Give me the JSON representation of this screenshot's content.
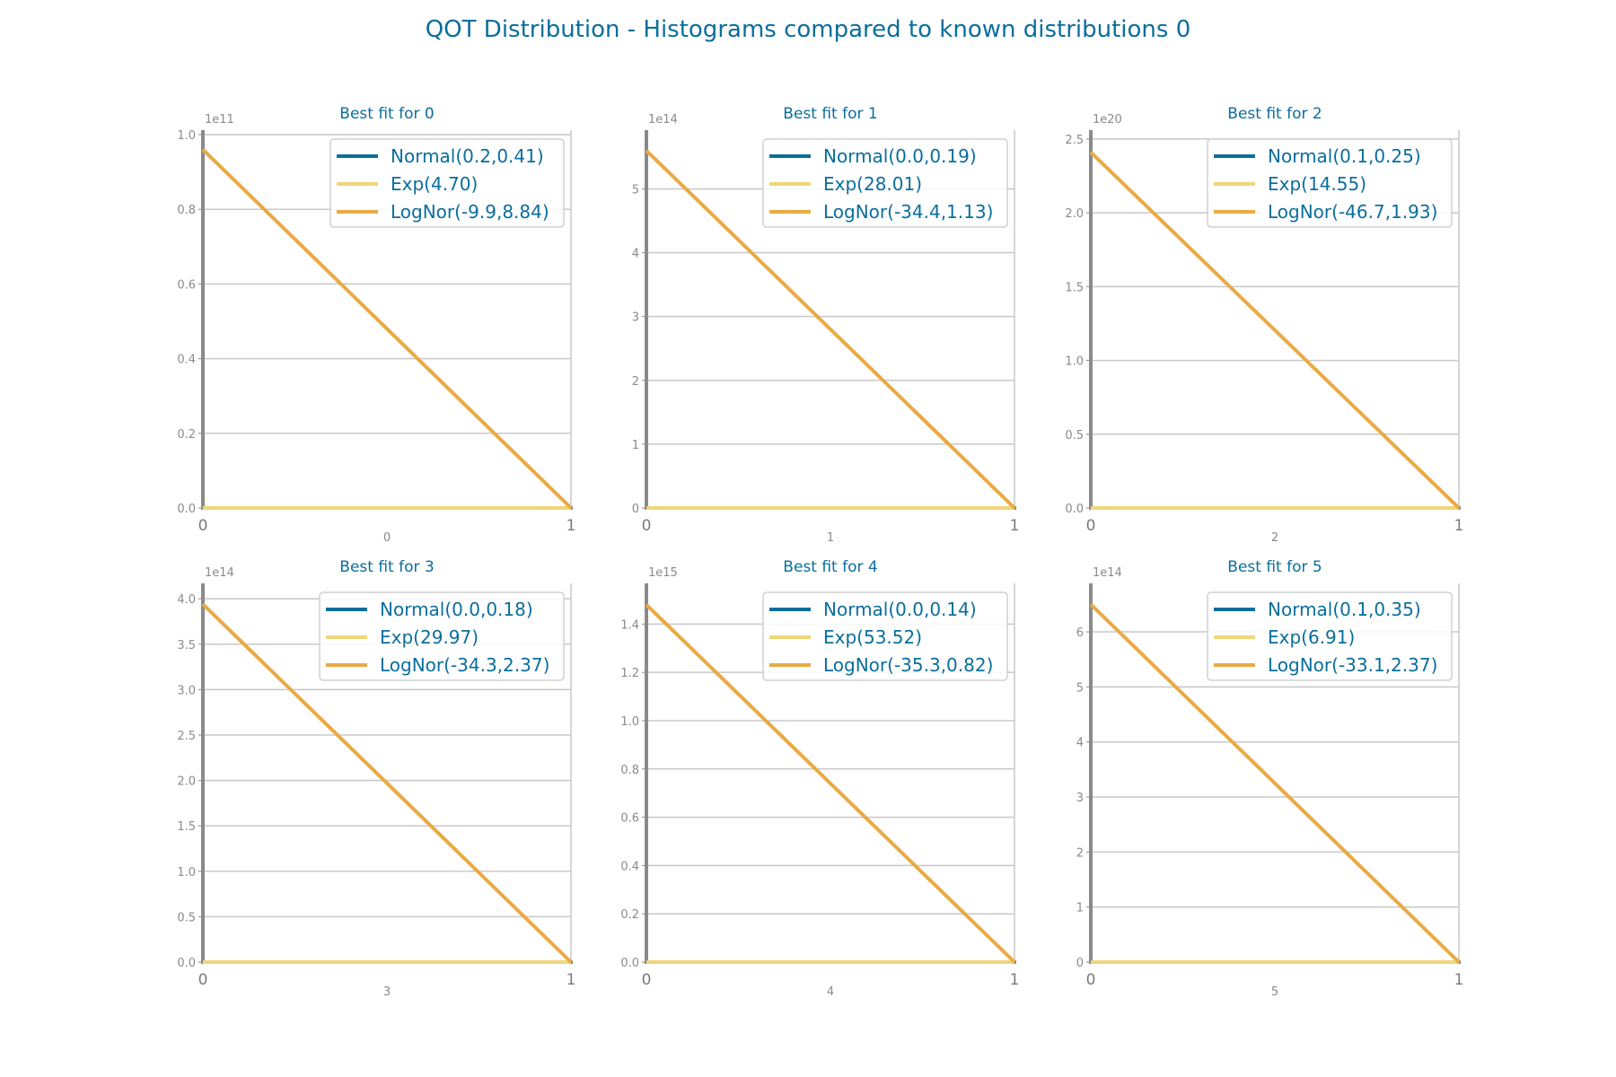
{
  "title": "QOT Distribution - Histograms compared to known distributions 0",
  "colors": {
    "title": "#0a6e9c",
    "normal": "#0a6e9c",
    "exp": "#f0d67a",
    "lognor": "#e9aa45",
    "grid": "#c8c8c8",
    "axis": "#8a8a8a"
  },
  "chart_data": [
    {
      "type": "line",
      "title": "Best fit for 0",
      "xlabel": "0",
      "exponent_label": "1e11",
      "xlim": [
        0,
        1
      ],
      "xticks": [
        "0",
        "1"
      ],
      "ylim": [
        0,
        1.0
      ],
      "yticks": [
        0.0,
        0.2,
        0.4,
        0.6,
        0.8,
        1.0
      ],
      "ytick_labels": [
        "0.0",
        "0.2",
        "0.4",
        "0.6",
        "0.8",
        "1.0"
      ],
      "grid": true,
      "legend_position": "top-right",
      "series": [
        {
          "name": "Normal(0.2,0.41)",
          "x": [
            0,
            1
          ],
          "y": [
            0,
            0
          ]
        },
        {
          "name": "Exp(4.70)",
          "x": [
            0,
            1
          ],
          "y": [
            0,
            0
          ]
        },
        {
          "name": "LogNor(-9.9,8.84)",
          "x": [
            0,
            1
          ],
          "y": [
            0.96,
            0
          ]
        }
      ]
    },
    {
      "type": "line",
      "title": "Best fit for 1",
      "xlabel": "1",
      "exponent_label": "1e14",
      "xlim": [
        0,
        1
      ],
      "xticks": [
        "0",
        "1"
      ],
      "ylim": [
        0,
        5.85
      ],
      "yticks": [
        0,
        1,
        2,
        3,
        4,
        5
      ],
      "ytick_labels": [
        "0",
        "1",
        "2",
        "3",
        "4",
        "5"
      ],
      "grid": true,
      "legend_position": "top-right",
      "series": [
        {
          "name": "Normal(0.0,0.19)",
          "x": [
            0,
            1
          ],
          "y": [
            0,
            0
          ]
        },
        {
          "name": "Exp(28.01)",
          "x": [
            0,
            1
          ],
          "y": [
            0,
            0
          ]
        },
        {
          "name": "LogNor(-34.4,1.13)",
          "x": [
            0,
            1
          ],
          "y": [
            5.6,
            0
          ]
        }
      ]
    },
    {
      "type": "line",
      "title": "Best fit for 2",
      "xlabel": "2",
      "exponent_label": "1e20",
      "xlim": [
        0,
        1
      ],
      "xticks": [
        "0",
        "1"
      ],
      "ylim": [
        0,
        2.53
      ],
      "yticks": [
        0.0,
        0.5,
        1.0,
        1.5,
        2.0,
        2.5
      ],
      "ytick_labels": [
        "0.0",
        "0.5",
        "1.0",
        "1.5",
        "2.0",
        "2.5"
      ],
      "grid": true,
      "legend_position": "top-right",
      "series": [
        {
          "name": "Normal(0.1,0.25)",
          "x": [
            0,
            1
          ],
          "y": [
            0,
            0
          ]
        },
        {
          "name": "Exp(14.55)",
          "x": [
            0,
            1
          ],
          "y": [
            0,
            0
          ]
        },
        {
          "name": "LogNor(-46.7,1.93)",
          "x": [
            0,
            1
          ],
          "y": [
            2.41,
            0
          ]
        }
      ]
    },
    {
      "type": "line",
      "title": "Best fit for 3",
      "xlabel": "3",
      "exponent_label": "1e14",
      "xlim": [
        0,
        1
      ],
      "xticks": [
        "0",
        "1"
      ],
      "ylim": [
        0,
        4.12
      ],
      "yticks": [
        0.0,
        0.5,
        1.0,
        1.5,
        2.0,
        2.5,
        3.0,
        3.5,
        4.0
      ],
      "ytick_labels": [
        "0.0",
        "0.5",
        "1.0",
        "1.5",
        "2.0",
        "2.5",
        "3.0",
        "3.5",
        "4.0"
      ],
      "grid": true,
      "legend_position": "top-right",
      "series": [
        {
          "name": "Normal(0.0,0.18)",
          "x": [
            0,
            1
          ],
          "y": [
            0,
            0
          ]
        },
        {
          "name": "Exp(29.97)",
          "x": [
            0,
            1
          ],
          "y": [
            0,
            0
          ]
        },
        {
          "name": "LogNor(-34.3,2.37)",
          "x": [
            0,
            1
          ],
          "y": [
            3.94,
            0
          ]
        }
      ]
    },
    {
      "type": "line",
      "title": "Best fit for 4",
      "xlabel": "4",
      "exponent_label": "1e15",
      "xlim": [
        0,
        1
      ],
      "xticks": [
        "0",
        "1"
      ],
      "ylim": [
        0,
        1.55
      ],
      "yticks": [
        0.0,
        0.2,
        0.4,
        0.6,
        0.8,
        1.0,
        1.2,
        1.4
      ],
      "ytick_labels": [
        "0.0",
        "0.2",
        "0.4",
        "0.6",
        "0.8",
        "1.0",
        "1.2",
        "1.4"
      ],
      "grid": true,
      "legend_position": "top-right",
      "series": [
        {
          "name": "Normal(0.0,0.14)",
          "x": [
            0,
            1
          ],
          "y": [
            0,
            0
          ]
        },
        {
          "name": "Exp(53.52)",
          "x": [
            0,
            1
          ],
          "y": [
            0,
            0
          ]
        },
        {
          "name": "LogNor(-35.3,0.82)",
          "x": [
            0,
            1
          ],
          "y": [
            1.48,
            0
          ]
        }
      ]
    },
    {
      "type": "line",
      "title": "Best fit for 5",
      "xlabel": "5",
      "exponent_label": "1e14",
      "xlim": [
        0,
        1
      ],
      "xticks": [
        "0",
        "1"
      ],
      "ylim": [
        0,
        6.8
      ],
      "yticks": [
        0,
        1,
        2,
        3,
        4,
        5,
        6
      ],
      "ytick_labels": [
        "0",
        "1",
        "2",
        "3",
        "4",
        "5",
        "6"
      ],
      "grid": true,
      "legend_position": "top-right",
      "series": [
        {
          "name": "Normal(0.1,0.35)",
          "x": [
            0,
            1
          ],
          "y": [
            0,
            0
          ]
        },
        {
          "name": "Exp(6.91)",
          "x": [
            0,
            1
          ],
          "y": [
            0,
            0
          ]
        },
        {
          "name": "LogNor(-33.1,2.37)",
          "x": [
            0,
            1
          ],
          "y": [
            6.5,
            0
          ]
        }
      ]
    }
  ]
}
